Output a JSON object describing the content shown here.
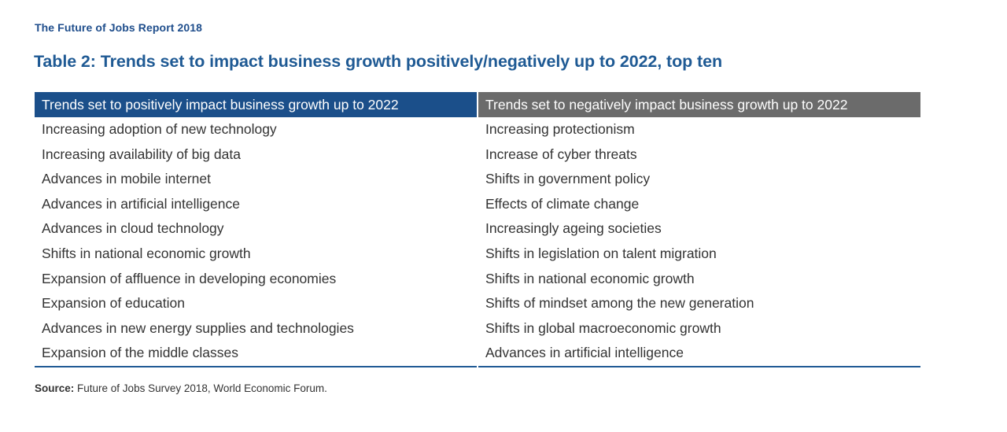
{
  "report_header": "The Future of Jobs Report 2018",
  "table_title": "Table 2: Trends set to impact business growth positively/negatively up to 2022, top ten",
  "columns": {
    "positive": {
      "header": "Trends set to positively impact business growth up to 2022",
      "header_color": "#1b4f8a",
      "rows": [
        "Increasing adoption of new technology",
        "Increasing availability of big data",
        "Advances in mobile internet",
        "Advances in artificial intelligence",
        "Advances in cloud technology",
        "Shifts in national economic growth",
        "Expansion of affluence in developing economies",
        "Expansion of education",
        "Advances in new energy supplies and technologies",
        "Expansion of the middle classes"
      ]
    },
    "negative": {
      "header": "Trends set to negatively impact business growth up to 2022",
      "header_color": "#6b6b6b",
      "rows": [
        "Increasing protectionism",
        "Increase of cyber threats",
        "Shifts in government policy",
        "Effects of climate change",
        "Increasingly ageing societies",
        "Shifts in legislation on talent migration",
        "Shifts in national economic growth",
        "Shifts of mindset among the new generation",
        "Shifts in global macroeconomic growth",
        "Advances in artificial intelligence"
      ]
    }
  },
  "source": {
    "label": "Source:",
    "text": "Future of Jobs Survey 2018, World Economic Forum."
  }
}
